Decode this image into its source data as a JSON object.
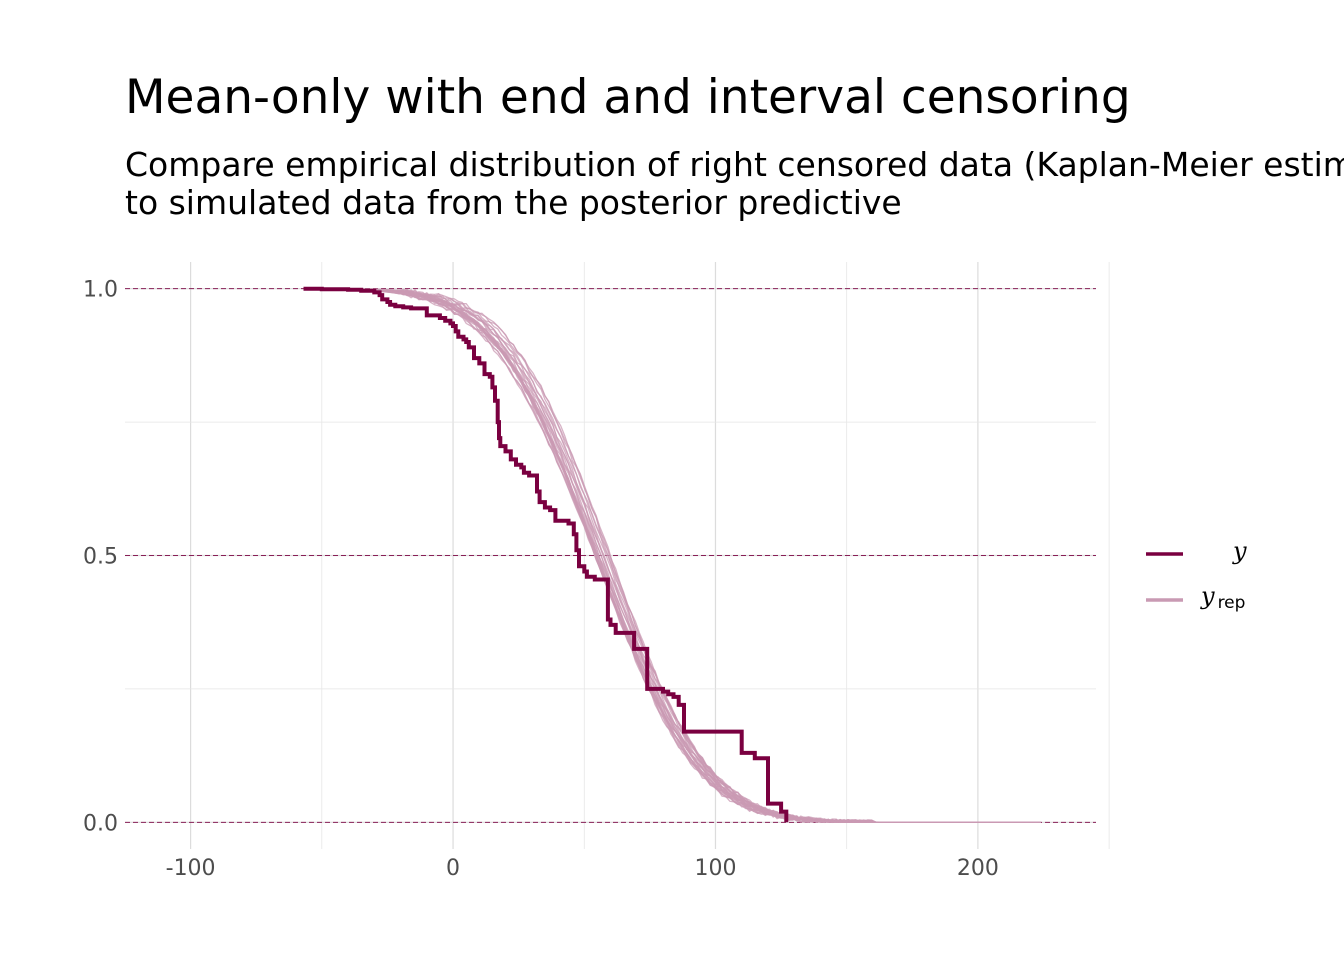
{
  "chart": {
    "title": "Mean-only with end and interval censoring",
    "subtitle_line1": "Compare empirical distribution of right censored data (Kaplan-Meier estimate)",
    "subtitle_line2": "to simulated data from the posterior predictive"
  },
  "colors": {
    "y": "#7a0040",
    "yrep": "#c99ab3",
    "grid": "#dcdcdc",
    "hline": "#7a0040"
  },
  "chart_data": {
    "type": "line",
    "title": "Mean-only with end and interval censoring",
    "subtitle": "Compare empirical distribution of right censored data (Kaplan-Meier estimate) to simulated data from the posterior predictive",
    "xlabel": "",
    "ylabel": "",
    "xlim": [
      -125,
      245
    ],
    "ylim": [
      -0.05,
      1.05
    ],
    "x_ticks": [
      -100,
      0,
      100,
      200
    ],
    "x_tick_labels": [
      "-100",
      "0",
      "100",
      "200"
    ],
    "y_ticks": [
      0,
      0.5,
      1
    ],
    "y_tick_labels": [
      "0.0",
      "0.5",
      "1.0"
    ],
    "reference_lines_y": [
      0,
      0.5,
      1
    ],
    "grid": true,
    "legend_position": "right",
    "legend": [
      "y",
      "y_rep"
    ],
    "series": [
      {
        "name": "y",
        "style": "step",
        "x": [
          -57,
          -50,
          -40,
          -35,
          -30,
          -28,
          -27,
          -25,
          -24,
          -22,
          -19,
          -16,
          -10,
          -5,
          -3,
          -1,
          0,
          1,
          2,
          4,
          5,
          6,
          8,
          10,
          12,
          14,
          15,
          16,
          17,
          17.5,
          18,
          20,
          22,
          24,
          26,
          27,
          29,
          32,
          33,
          35,
          37,
          39,
          44,
          46,
          47,
          48,
          50,
          51,
          54,
          59,
          60,
          62,
          69,
          74,
          80,
          82,
          84,
          86,
          88,
          95,
          110,
          115,
          120,
          125,
          127
        ],
        "y": [
          1.0,
          0.999,
          0.998,
          0.996,
          0.993,
          0.988,
          0.98,
          0.975,
          0.97,
          0.967,
          0.965,
          0.963,
          0.95,
          0.945,
          0.94,
          0.935,
          0.93,
          0.92,
          0.91,
          0.905,
          0.9,
          0.89,
          0.87,
          0.86,
          0.84,
          0.835,
          0.815,
          0.79,
          0.75,
          0.72,
          0.705,
          0.695,
          0.68,
          0.67,
          0.665,
          0.655,
          0.65,
          0.62,
          0.6,
          0.59,
          0.585,
          0.565,
          0.56,
          0.54,
          0.51,
          0.48,
          0.47,
          0.46,
          0.455,
          0.38,
          0.37,
          0.355,
          0.325,
          0.25,
          0.245,
          0.24,
          0.235,
          0.22,
          0.17,
          0.17,
          0.13,
          0.12,
          0.035,
          0.02,
          0.0
        ]
      },
      {
        "name": "y_rep",
        "style": "lines",
        "count": 25,
        "distribution": "normal",
        "mean_range": [
          54,
          60
        ],
        "sd_range": [
          29,
          32
        ],
        "x_range": [
          -55,
          225
        ]
      }
    ]
  }
}
